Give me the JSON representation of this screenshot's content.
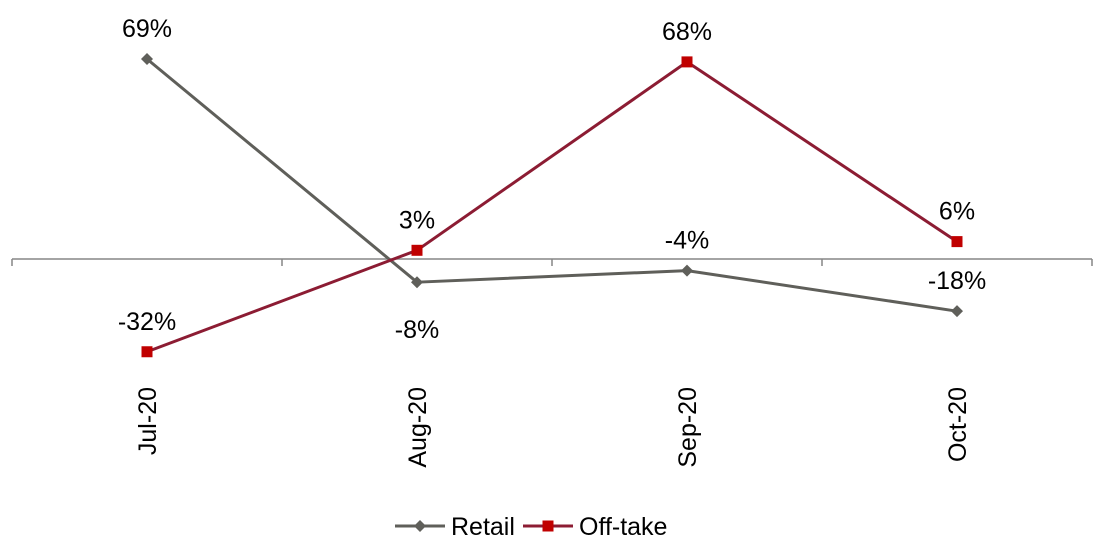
{
  "chart_data": {
    "type": "line",
    "categories": [
      "Jul-20",
      "Aug-20",
      "Sep-20",
      "Oct-20"
    ],
    "series": [
      {
        "name": "Retail",
        "values": [
          0.69,
          -0.08,
          -0.04,
          -0.18
        ],
        "labels": [
          "69%",
          "-8%",
          "-4%",
          "-18%"
        ],
        "color": "#5f5f5a",
        "marker": "diamond"
      },
      {
        "name": "Off-take",
        "values": [
          -0.32,
          0.03,
          0.68,
          0.06
        ],
        "labels": [
          "-32%",
          "3%",
          "68%",
          "6%"
        ],
        "color": "#8c1c33",
        "marker": "square",
        "marker_color": "#c00000"
      }
    ],
    "ylim": [
      -0.36,
      0.72
    ],
    "grid": false,
    "legend_position": "bottom",
    "x_tick_rotation": "vertical"
  }
}
